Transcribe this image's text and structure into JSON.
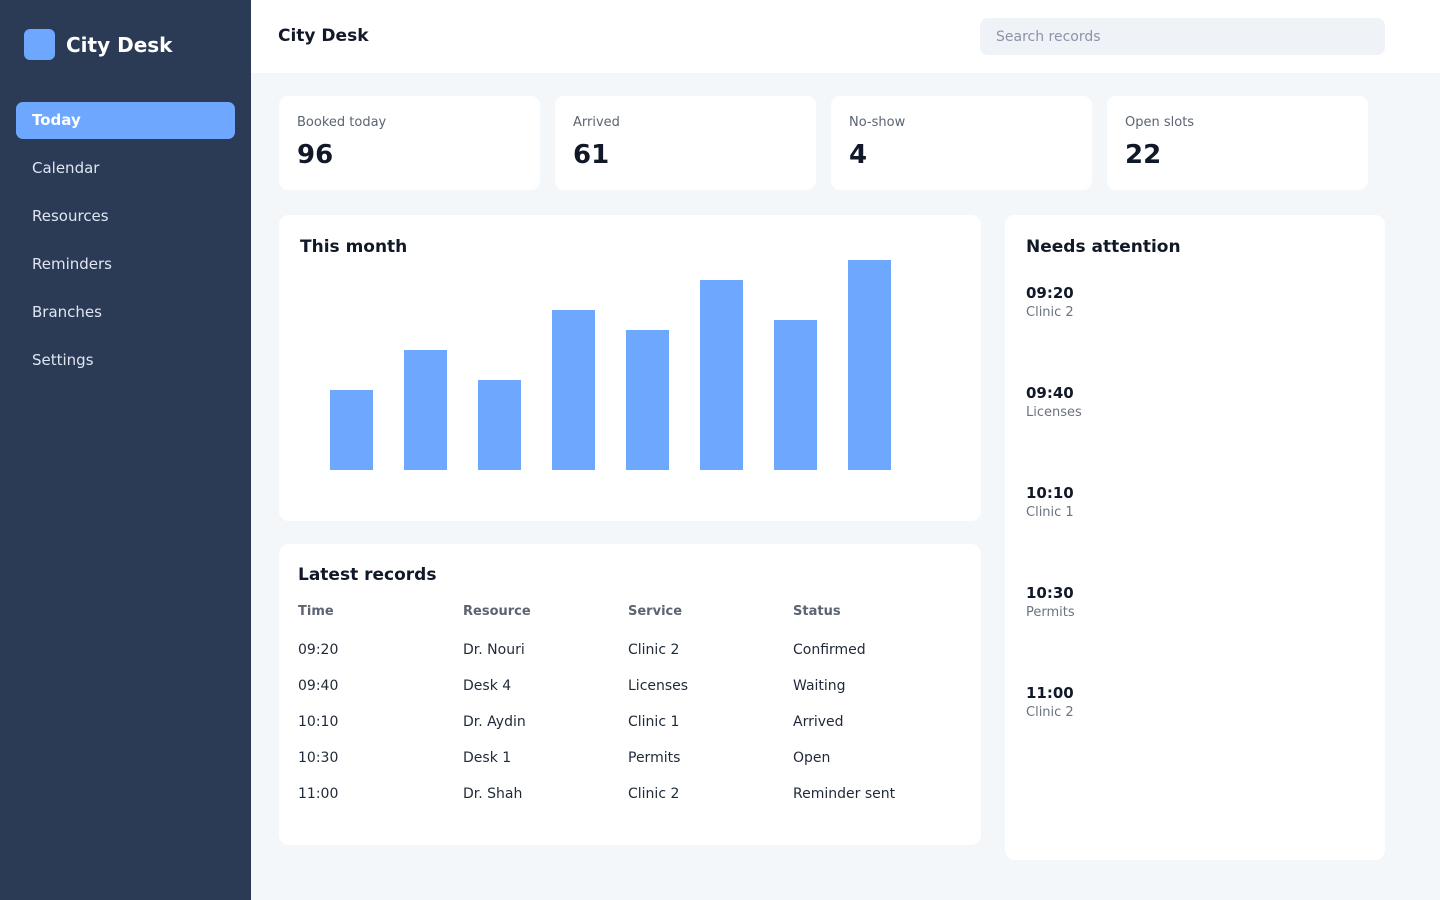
{
  "sidebar": {
    "brand": "City Desk",
    "items": [
      {
        "label": "Today",
        "active": true
      },
      {
        "label": "Calendar"
      },
      {
        "label": "Resources"
      },
      {
        "label": "Reminders"
      },
      {
        "label": "Branches"
      },
      {
        "label": "Settings"
      }
    ]
  },
  "header": {
    "title": "City Desk",
    "search_placeholder": "Search records"
  },
  "kpis": [
    {
      "label": "Booked today",
      "value": "96"
    },
    {
      "label": "Arrived",
      "value": "61"
    },
    {
      "label": "No-show",
      "value": "4"
    },
    {
      "label": "Open slots",
      "value": "22"
    }
  ],
  "chart": {
    "title": "This month"
  },
  "chart_data": {
    "type": "bar",
    "categories": [
      "",
      "",
      "",
      "",
      "",
      "",
      "",
      ""
    ],
    "values": [
      40,
      60,
      45,
      80,
      70,
      95,
      75,
      105
    ],
    "title": "This month",
    "xlabel": "",
    "ylabel": "",
    "ylim": [
      0,
      105
    ],
    "grid": false,
    "bar_color": "#6ea8fe"
  },
  "attention": {
    "title": "Needs attention",
    "items": [
      {
        "time": "09:20",
        "place": "Clinic 2"
      },
      {
        "time": "09:40",
        "place": "Licenses"
      },
      {
        "time": "10:10",
        "place": "Clinic 1"
      },
      {
        "time": "10:30",
        "place": "Permits"
      },
      {
        "time": "11:00",
        "place": "Clinic 2"
      }
    ]
  },
  "records": {
    "title": "Latest records",
    "columns": [
      "Time",
      "Resource",
      "Service",
      "Status"
    ],
    "rows": [
      [
        "09:20",
        "Dr. Nouri",
        "Clinic 2",
        "Confirmed"
      ],
      [
        "09:40",
        "Desk 4",
        "Licenses",
        "Waiting"
      ],
      [
        "10:10",
        "Dr. Aydin",
        "Clinic 1",
        "Arrived"
      ],
      [
        "10:30",
        "Desk 1",
        "Permits",
        "Open"
      ],
      [
        "11:00",
        "Dr. Shah",
        "Clinic 2",
        "Reminder sent"
      ]
    ]
  },
  "colors": {
    "sidebar_bg": "#2b3a55",
    "accent": "#6ea8fe",
    "page_bg": "#f4f7fa"
  }
}
